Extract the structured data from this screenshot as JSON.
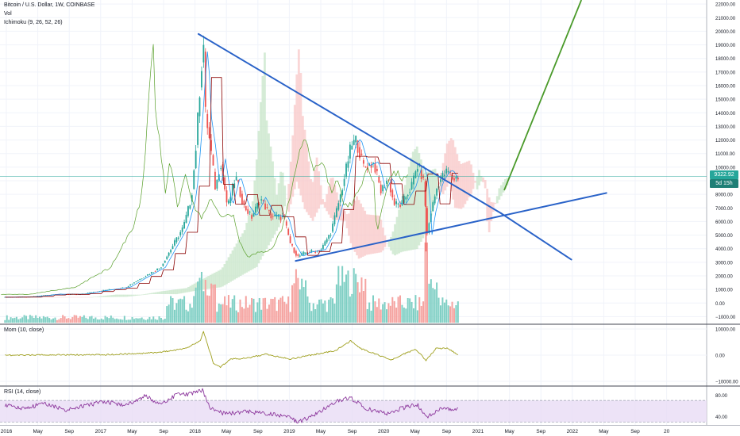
{
  "legend": {
    "symbol": "Bitcoin / U.S. Dollar, 1W, COINBASE",
    "volume": "Vol",
    "ichimoku": "Ichimoku (9, 26, 52, 26)"
  },
  "panes": {
    "momentum_label": "Mom (10, close)",
    "rsi_label": "RSI (14, close)"
  },
  "last_price": {
    "value": "9322.92",
    "countdown": "5d 15h",
    "color": "#26a69a"
  },
  "colors": {
    "bull": "#26a69a",
    "bear": "#ef5350",
    "trendline": "#2962c8",
    "projection": "#4a9a2a",
    "kumo_bull": "#c8e6c9",
    "kumo_bear": "#f8c8c8",
    "tenkan": "#2196f3",
    "kijun": "#8b0000",
    "chikou": "#5aa02c",
    "momentum": "#a0a020",
    "rsi": "#8e3a9e",
    "rsi_band": "#e9dcf5"
  },
  "chart_data": [
    {
      "type": "candlestick",
      "pane": "price",
      "x_ticks": [
        "2016",
        "May",
        "Sep",
        "2017",
        "May",
        "Sep",
        "2018",
        "May",
        "Sep",
        "2019",
        "May",
        "Sep",
        "2020",
        "May",
        "Sep",
        "2021",
        "May",
        "Sep",
        "2022",
        "May",
        "Sep",
        "20"
      ],
      "y_ticks": [
        "22000.00",
        "21000.00",
        "20000.00",
        "19000.00",
        "18000.00",
        "17000.00",
        "16000.00",
        "15000.00",
        "14000.00",
        "13000.00",
        "12000.00",
        "11000.00",
        "10000.00",
        "9000.00",
        "8000.00",
        "7000.00",
        "6000.00",
        "5000.00",
        "4000.00",
        "3000.00",
        "2000.00",
        "1000.00",
        "0.00",
        "−1000.00"
      ],
      "ylim": [
        -1500,
        22300
      ],
      "xlim": [
        2015.95,
        2023.0
      ],
      "close_series": [
        [
          2016.0,
          430
        ],
        [
          2016.25,
          450
        ],
        [
          2016.5,
          650
        ],
        [
          2016.75,
          640
        ],
        [
          2016.95,
          900
        ],
        [
          2017.2,
          1150
        ],
        [
          2017.4,
          2000
        ],
        [
          2017.55,
          2600
        ],
        [
          2017.68,
          4300
        ],
        [
          2017.78,
          5600
        ],
        [
          2017.86,
          7800
        ],
        [
          2017.9,
          11000
        ],
        [
          2017.95,
          16500
        ],
        [
          2017.98,
          19200
        ],
        [
          2018.0,
          14000
        ],
        [
          2018.05,
          11500
        ],
        [
          2018.1,
          8300
        ],
        [
          2018.15,
          10500
        ],
        [
          2018.22,
          7000
        ],
        [
          2018.3,
          9300
        ],
        [
          2018.38,
          7200
        ],
        [
          2018.46,
          6300
        ],
        [
          2018.55,
          7700
        ],
        [
          2018.65,
          6400
        ],
        [
          2018.78,
          6300
        ],
        [
          2018.85,
          4300
        ],
        [
          2018.92,
          3400
        ],
        [
          2019.0,
          3700
        ],
        [
          2019.15,
          3900
        ],
        [
          2019.25,
          5200
        ],
        [
          2019.35,
          8000
        ],
        [
          2019.45,
          11500
        ],
        [
          2019.5,
          12000
        ],
        [
          2019.58,
          10000
        ],
        [
          2019.68,
          10300
        ],
        [
          2019.75,
          8200
        ],
        [
          2019.82,
          9200
        ],
        [
          2019.88,
          7300
        ],
        [
          2019.95,
          7200
        ],
        [
          2020.05,
          8500
        ],
        [
          2020.12,
          10200
        ],
        [
          2020.18,
          8800
        ],
        [
          2020.21,
          5000
        ],
        [
          2020.25,
          6700
        ],
        [
          2020.32,
          8800
        ],
        [
          2020.38,
          9500
        ],
        [
          2020.42,
          9700
        ],
        [
          2020.47,
          9100
        ],
        [
          2020.52,
          9300
        ]
      ],
      "trendlines": [
        {
          "from": [
            2017.93,
            19800
          ],
          "to": [
            2020.95,
            6600
          ]
        },
        {
          "from": [
            2018.9,
            3100
          ],
          "to": [
            2022.0,
            8100
          ]
        },
        {
          "from": [
            2020.95,
            6600
          ],
          "to": [
            2021.65,
            3200
          ]
        }
      ],
      "projection": {
        "from": [
          2020.98,
          8300
        ],
        "to": [
          2021.75,
          22300
        ]
      },
      "last_value": 9322.92
    },
    {
      "type": "bar",
      "pane": "volume",
      "series": "Vol"
    },
    {
      "type": "line",
      "pane": "momentum",
      "y_ticks": [
        "10000.00",
        "0.00",
        "−10000.00"
      ],
      "ylim": [
        -11500,
        11500
      ],
      "values": [
        [
          2016.0,
          0
        ],
        [
          2017.0,
          150
        ],
        [
          2017.5,
          900
        ],
        [
          2017.8,
          2500
        ],
        [
          2017.95,
          5500
        ],
        [
          2017.98,
          9000
        ],
        [
          2018.02,
          4000
        ],
        [
          2018.08,
          -3000
        ],
        [
          2018.15,
          -4500
        ],
        [
          2018.25,
          -1500
        ],
        [
          2018.4,
          -1200
        ],
        [
          2018.6,
          300
        ],
        [
          2018.85,
          -1500
        ],
        [
          2019.0,
          -400
        ],
        [
          2019.3,
          1800
        ],
        [
          2019.45,
          5500
        ],
        [
          2019.55,
          2500
        ],
        [
          2019.7,
          400
        ],
        [
          2019.85,
          -1800
        ],
        [
          2020.0,
          800
        ],
        [
          2020.1,
          2200
        ],
        [
          2020.2,
          -2000
        ],
        [
          2020.3,
          2500
        ],
        [
          2020.42,
          2600
        ],
        [
          2020.52,
          0
        ]
      ]
    },
    {
      "type": "line",
      "pane": "rsi",
      "y_ticks": [
        "80.00",
        "40.00"
      ],
      "ylim": [
        25,
        95
      ],
      "band": [
        30,
        70
      ],
      "values": [
        [
          2016.0,
          62
        ],
        [
          2016.2,
          55
        ],
        [
          2016.4,
          65
        ],
        [
          2016.6,
          52
        ],
        [
          2016.8,
          60
        ],
        [
          2017.0,
          68
        ],
        [
          2017.2,
          60
        ],
        [
          2017.4,
          78
        ],
        [
          2017.55,
          62
        ],
        [
          2017.7,
          80
        ],
        [
          2017.85,
          82
        ],
        [
          2017.97,
          88
        ],
        [
          2018.05,
          55
        ],
        [
          2018.2,
          45
        ],
        [
          2018.4,
          50
        ],
        [
          2018.6,
          45
        ],
        [
          2018.8,
          42
        ],
        [
          2018.92,
          30
        ],
        [
          2019.05,
          40
        ],
        [
          2019.3,
          68
        ],
        [
          2019.45,
          75
        ],
        [
          2019.6,
          55
        ],
        [
          2019.8,
          45
        ],
        [
          2020.0,
          58
        ],
        [
          2020.12,
          62
        ],
        [
          2020.2,
          38
        ],
        [
          2020.35,
          55
        ],
        [
          2020.52,
          55
        ]
      ]
    }
  ]
}
